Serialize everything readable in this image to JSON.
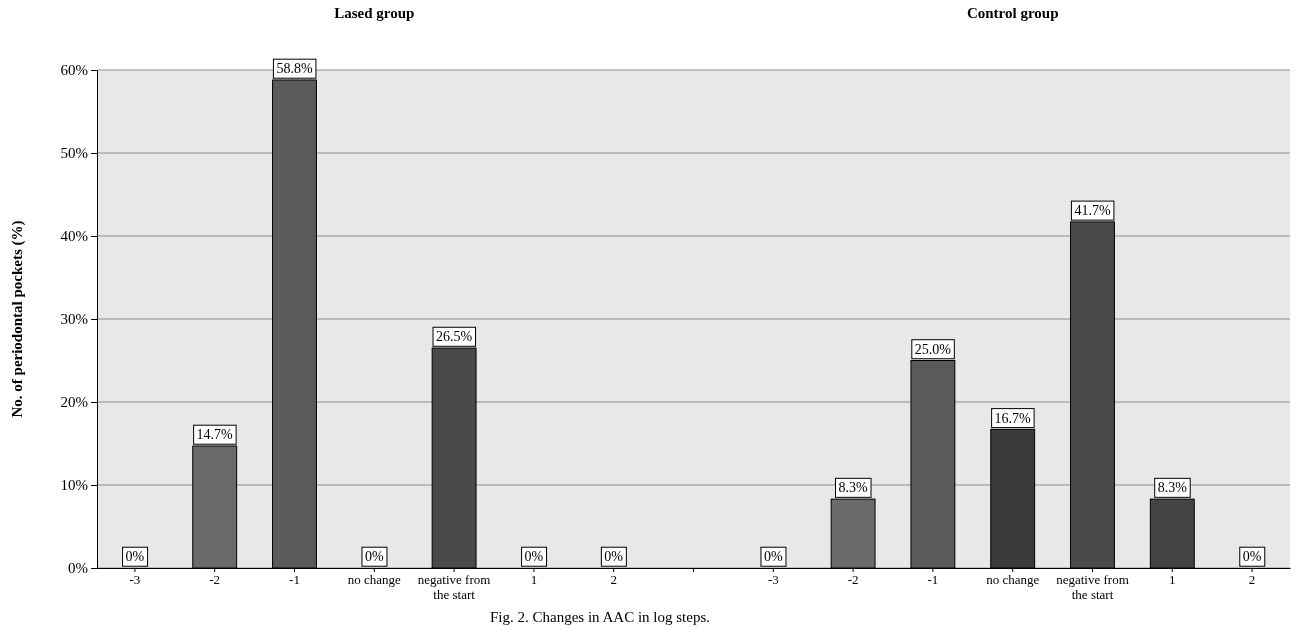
{
  "chart_data": {
    "type": "bar",
    "ylabel": "No. of periodontal pockets (%)",
    "categories": [
      "-3",
      "-2",
      "-1",
      "no change",
      "negative from the start",
      "1",
      "2",
      null,
      "-3",
      "-2",
      "-1",
      "no change",
      "negative from the start",
      "1",
      "2"
    ],
    "values": [
      0,
      14.7,
      58.8,
      0,
      26.5,
      0,
      0,
      null,
      0,
      8.3,
      25.0,
      16.7,
      41.7,
      8.3,
      0
    ],
    "value_labels": [
      "0%",
      "14.7%",
      "58.8%",
      "0%",
      "26.5%",
      "0%",
      "0%",
      null,
      "0%",
      "8.3%",
      "25.0%",
      "16.7%",
      "41.7%",
      "8.3%",
      "0%"
    ],
    "colors": [
      "#555555",
      "#6a6a6a",
      "#5a5a5a",
      "#3a3a3a",
      "#4a4a4a",
      "#444444",
      "#555555",
      null,
      "#555555",
      "#6a6a6a",
      "#5a5a5a",
      "#3a3a3a",
      "#4a4a4a",
      "#444444",
      "#555555"
    ],
    "ylim": [
      0,
      60
    ],
    "yticks": [
      {
        "value": 0,
        "label": "0%"
      },
      {
        "value": 10,
        "label": "10%"
      },
      {
        "value": 20,
        "label": "20%"
      },
      {
        "value": 30,
        "label": "30%"
      },
      {
        "value": 40,
        "label": "40%"
      },
      {
        "value": 50,
        "label": "50%"
      },
      {
        "value": 60,
        "label": "60%"
      }
    ],
    "grid": "y",
    "annotations": [
      "Lased group",
      "Control group",
      "Fig. 2. Changes in AAC in log steps."
    ]
  }
}
